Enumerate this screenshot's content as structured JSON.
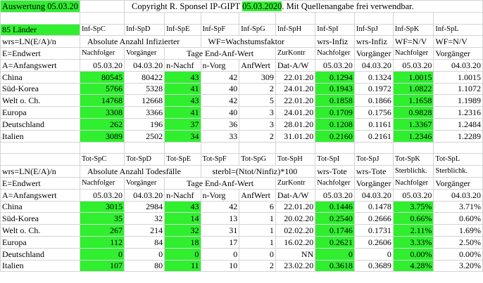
{
  "header": {
    "auswertung": "Auswertung 05.03.20",
    "copyright_pre": "Copyright R. Sponsel IP-GIPT ",
    "copyright_date": "05.03.2020",
    "copyright_post": ". Mit Quellenangabe frei verwendbar."
  },
  "colors": {
    "highlight": "#2fef2f"
  },
  "infected": {
    "title": "85 Länder",
    "col_ids": [
      "Inf-SpC",
      "Inf-SpD",
      "Inf-SpE",
      "Inf-SpF",
      "Inf-SpG",
      "Inf-SpH",
      "Inf-SpI",
      "Inf-SpJ",
      "Inf-SpK",
      "Inf-SpL"
    ],
    "formula": "wrs=LN(E/A)/n",
    "desc1": "Absolute Anzahl Infizierter",
    "desc2": "WF=Wachstumsfaktor",
    "row2": [
      "wrs-Infiz",
      "wrs-Infiz",
      "WF=N/V",
      "WF=N/V"
    ],
    "e_label": "E=Endwert",
    "nachfolger": "Nachfolger",
    "vorgaenger": "Vorgänger",
    "tage_label": "Tage End-Anf-Wert",
    "zurkontr": "ZurKontr",
    "row3_tail": [
      "Nachfolger",
      "Vorgänger",
      "Nachfolger",
      "Vorgänger"
    ],
    "a_label": "A=Anfangswert",
    "row4": [
      "05.03.20",
      "04.03.20",
      "n-Nachf",
      "n-Vorg",
      "AnfWert",
      "Dat-A/W",
      "05.03.20",
      "04.03.20",
      "05.03.20",
      "04.03.20"
    ],
    "rows": [
      {
        "name": "China",
        "c": "80545",
        "d": "80422",
        "e": "43",
        "f": "42",
        "g": "309",
        "h": "22.01.20",
        "i": "0.1294",
        "j": "0.1324",
        "k": "1.0015",
        "l": "1.0015"
      },
      {
        "name": "Süd-Korea",
        "c": "5766",
        "d": "5328",
        "e": "41",
        "f": "40",
        "g": "2",
        "h": "24.01.20",
        "i": "0.1943",
        "j": "0.1972",
        "k": "1.0822",
        "l": "1.1072"
      },
      {
        "name": "Welt o. Ch.",
        "c": "14768",
        "d": "12668",
        "e": "43",
        "f": "42",
        "g": "5",
        "h": "22.01.20",
        "i": "0.1858",
        "j": "0.1866",
        "k": "1.1658",
        "l": "1.1989"
      },
      {
        "name": "Europa",
        "c": "3308",
        "d": "3366",
        "e": "41",
        "f": "40",
        "g": "3",
        "h": "24.01.20",
        "i": "0.1709",
        "j": "0.1756",
        "k": "0.9828",
        "l": "1.2316"
      },
      {
        "name": "Deutschland",
        "c": "262",
        "d": "196",
        "e": "37",
        "f": "36",
        "g": "3",
        "h": "28.01.20",
        "i": "0.1208",
        "j": "0.1161",
        "k": "1.3367",
        "l": "1.2484"
      },
      {
        "name": "Italien",
        "c": "3089",
        "d": "2502",
        "e": "34",
        "f": "33",
        "g": "2",
        "h": "31.01.20",
        "i": "0.2160",
        "j": "0.2161",
        "k": "1.2346",
        "l": "1.2289"
      }
    ]
  },
  "deaths": {
    "col_ids": [
      "Tot-SpC",
      "Tot-SpD",
      "Tot-SpE",
      "Tot-SpF",
      "Tot-SpG",
      "Tot-SpH",
      "Tot-SpI",
      "Tot-SpJ",
      "Tot-SpK",
      "Tot-SpL"
    ],
    "formula": "wrs=LN(E/A)/n",
    "desc1": "Absolute Anzahl Todesfälle",
    "desc2": "sterbl=(Ntot/Ninfiz)*100",
    "row2": [
      "wrs-Tote",
      "wrs-Tote",
      "Sterblichk.",
      "Sterblichk."
    ],
    "e_label": "E=Endwert",
    "nachfolger": "Nachfolger",
    "vorgaenger": "Vorgänger",
    "tage_label": "Tage End-Anf-Wert",
    "zurkontr": "ZurKontr",
    "row3_tail": [
      "Nachfolger",
      "Vorgänger",
      "Nachfolger",
      "Vorgänger"
    ],
    "a_label": "A=Anfangswert",
    "row4": [
      "05.03.20",
      "04.03.20",
      "n-Nachf",
      "n-Vorg",
      "AnfWert",
      "Dat-A/W",
      "05.03.20",
      "04.03.20",
      "05.03.20",
      "04.03.20"
    ],
    "rows": [
      {
        "name": "China",
        "c": "3015",
        "d": "2984",
        "e": "43",
        "f": "42",
        "g": "6",
        "h": "22.01.20",
        "i": "0.1446",
        "j": "0.1478",
        "k": "3.75%",
        "l": "3.71%"
      },
      {
        "name": "Süd-Korea",
        "c": "35",
        "d": "32",
        "e": "14",
        "f": "13",
        "g": "1",
        "h": "20.02.20",
        "i": "0.2540",
        "j": "0.2666",
        "k": "0.66%",
        "l": "0.60%"
      },
      {
        "name": "Welt o. Ch.",
        "c": "267",
        "d": "214",
        "e": "32",
        "f": "31",
        "g": "1",
        "h": "02.02.20",
        "i": "0.1746",
        "j": "0.1731",
        "k": "2.11%",
        "l": "1.69%"
      },
      {
        "name": "Europa",
        "c": "112",
        "d": "84",
        "e": "18",
        "f": "17",
        "g": "1",
        "h": "16.02.20",
        "i": "0.2621",
        "j": "0.2606",
        "k": "3.33%",
        "l": "2.50%"
      },
      {
        "name": "Deutschland",
        "c": "0",
        "d": "0",
        "e": "0",
        "f": "0",
        "g": "0",
        "h": "NN",
        "i": "0",
        "j": "0",
        "k": "0.00%",
        "l": "0.00%"
      },
      {
        "name": "Italien",
        "c": "107",
        "d": "80",
        "e": "11",
        "f": "10",
        "g": "2",
        "h": "23.02.20",
        "i": "0.3618",
        "j": "0.3689",
        "k": "4.28%",
        "l": "3.20%"
      }
    ]
  }
}
